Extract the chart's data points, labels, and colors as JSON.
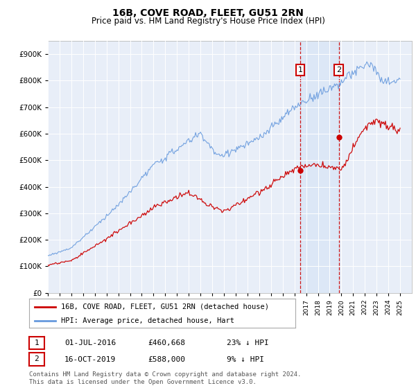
{
  "title": "16B, COVE ROAD, FLEET, GU51 2RN",
  "subtitle": "Price paid vs. HM Land Registry's House Price Index (HPI)",
  "legend_line1": "16B, COVE ROAD, FLEET, GU51 2RN (detached house)",
  "legend_line2": "HPI: Average price, detached house, Hart",
  "transaction1_date": "01-JUL-2016",
  "transaction1_price": "£460,668",
  "transaction1_hpi": "23% ↓ HPI",
  "transaction1_x": 2016.5,
  "transaction1_y": 460668,
  "transaction2_date": "16-OCT-2019",
  "transaction2_price": "£588,000",
  "transaction2_hpi": "9% ↓ HPI",
  "transaction2_x": 2019.79,
  "transaction2_y": 588000,
  "footer": "Contains HM Land Registry data © Crown copyright and database right 2024.\nThis data is licensed under the Open Government Licence v3.0.",
  "hpi_color": "#6699DD",
  "price_color": "#CC0000",
  "vline_color": "#CC0000",
  "ylim": [
    0,
    950000
  ],
  "yticks": [
    0,
    100000,
    200000,
    300000,
    400000,
    500000,
    600000,
    700000,
    800000,
    900000
  ],
  "xlim": [
    1995,
    2026
  ],
  "background_color": "#ffffff",
  "plot_bg_color": "#e8eef8"
}
